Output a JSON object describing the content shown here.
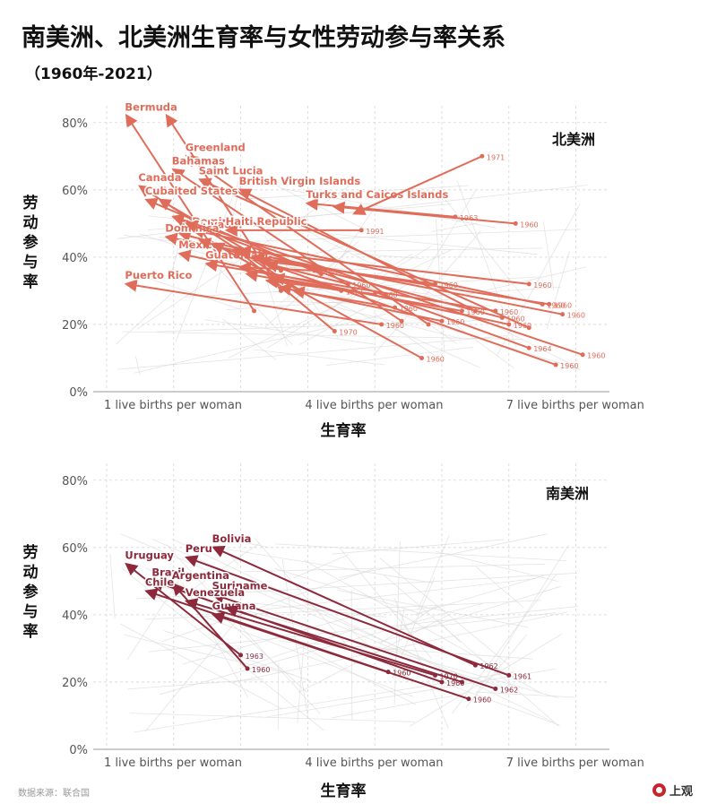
{
  "header": {
    "title": "南美洲、北美洲生育率与女性劳动参与率关系",
    "subtitle": "（1960年-2021）"
  },
  "footer": {
    "source": "数据来源：联合国",
    "brand": "上观"
  },
  "colors": {
    "north_america": "#e06c5a",
    "south_america": "#8c2a3c",
    "background_lines": "#d9d9d9",
    "grid": "#d6d6d6"
  },
  "chart_data": [
    {
      "type": "scatter",
      "title": "北美洲",
      "xlabel": "生育率",
      "ylabel": "劳动参与率",
      "xlim": [
        0.8,
        8.5
      ],
      "ylim": [
        0,
        85
      ],
      "grid": true,
      "x_ticks": [
        {
          "value": 1,
          "label": "1 live births per woman"
        },
        {
          "value": 4,
          "label": "4 live births per woman"
        },
        {
          "value": 7,
          "label": "7 live births per woman"
        }
      ],
      "y_ticks": [
        {
          "value": 0,
          "label": "0%"
        },
        {
          "value": 20,
          "label": "20%"
        },
        {
          "value": 40,
          "label": "40%"
        },
        {
          "value": 60,
          "label": "60%"
        },
        {
          "value": 80,
          "label": "80%"
        }
      ],
      "series": [
        {
          "name": "Bermuda",
          "start_label": "",
          "start": [
            3.2,
            24
          ],
          "end": [
            1.3,
            82
          ]
        },
        {
          "name": "",
          "start_label": "",
          "start": [
            3.6,
            30
          ],
          "end": [
            1.9,
            82
          ]
        },
        {
          "name": "Greenland",
          "start_label": "",
          "start": [
            5.8,
            20
          ],
          "end": [
            2.2,
            70
          ]
        },
        {
          "name": "Bahamas",
          "start_label": "",
          "start": [
            5.4,
            21
          ],
          "end": [
            2.0,
            66
          ]
        },
        {
          "name": "Saint Lucia",
          "start_label": "",
          "start": [
            7.3,
            19
          ],
          "end": [
            2.4,
            63
          ]
        },
        {
          "name": "British Virgin Islands",
          "start_label": "",
          "start": [
            6.5,
            24
          ],
          "end": [
            3.0,
            60
          ]
        },
        {
          "name": "Canada",
          "start_label": "",
          "start": [
            3.9,
            30
          ],
          "end": [
            1.5,
            61
          ]
        },
        {
          "name": "United States",
          "start_label": "",
          "start": [
            3.6,
            36
          ],
          "end": [
            1.8,
            57
          ]
        },
        {
          "name": "Cuba",
          "start_label": "",
          "start": [
            4.2,
            35
          ],
          "end": [
            1.6,
            57
          ]
        },
        {
          "name": "Turks and Caicos Islands",
          "start_label": "1963",
          "start": [
            6.2,
            52
          ],
          "end": [
            4.0,
            56
          ]
        },
        {
          "name": "",
          "start_label": "1960",
          "start": [
            7.1,
            50
          ],
          "end": [
            4.4,
            55
          ]
        },
        {
          "name": "",
          "start_label": "1971",
          "start": [
            6.6,
            70
          ],
          "end": [
            4.7,
            53
          ]
        },
        {
          "name": "Dominican Republic",
          "start_label": "1960",
          "start": [
            7.5,
            26
          ],
          "end": [
            2.3,
            48
          ]
        },
        {
          "name": "El Salvador",
          "start_label": "1960",
          "start": [
            6.9,
            22
          ],
          "end": [
            2.1,
            47
          ]
        },
        {
          "name": "Dominica",
          "start_label": "1960",
          "start": [
            7.8,
            23
          ],
          "end": [
            1.9,
            46
          ]
        },
        {
          "name": "Haiti",
          "start_label": "1991",
          "start": [
            4.8,
            48
          ],
          "end": [
            2.8,
            48
          ]
        },
        {
          "name": "Mexico",
          "start_label": "1960",
          "start": [
            7.0,
            20
          ],
          "end": [
            2.1,
            41
          ]
        },
        {
          "name": "Guatemala",
          "start_label": "1960",
          "start": [
            6.8,
            24
          ],
          "end": [
            2.5,
            38
          ]
        },
        {
          "name": "Puerto Rico",
          "start_label": "1960",
          "start": [
            5.1,
            20
          ],
          "end": [
            1.3,
            32
          ]
        },
        {
          "name": "",
          "start_label": "1960",
          "start": [
            8.1,
            11
          ],
          "end": [
            2.0,
            52
          ]
        },
        {
          "name": "",
          "start_label": "1964",
          "start": [
            7.3,
            13
          ],
          "end": [
            2.2,
            50
          ]
        },
        {
          "name": "",
          "start_label": "1960",
          "start": [
            7.7,
            8
          ],
          "end": [
            2.4,
            45
          ]
        },
        {
          "name": "",
          "start_label": "1960",
          "start": [
            5.7,
            10
          ],
          "end": [
            2.6,
            44
          ]
        },
        {
          "name": "",
          "start_label": "1970",
          "start": [
            4.4,
            18
          ],
          "end": [
            2.9,
            43
          ]
        },
        {
          "name": "",
          "start_label": "1960",
          "start": [
            7.3,
            32
          ],
          "end": [
            3.0,
            42
          ]
        },
        {
          "name": "",
          "start_label": "1960",
          "start": [
            7.6,
            26
          ],
          "end": [
            3.2,
            40
          ]
        },
        {
          "name": "",
          "start_label": "1960",
          "start": [
            5.9,
            32
          ],
          "end": [
            3.3,
            39
          ]
        },
        {
          "name": "",
          "start_label": "1960",
          "start": [
            4.6,
            32
          ],
          "end": [
            3.4,
            38
          ]
        },
        {
          "name": "",
          "start_label": "1960",
          "start": [
            4.1,
            36
          ],
          "end": [
            3.0,
            37
          ]
        },
        {
          "name": "",
          "start_label": "1961",
          "start": [
            4.5,
            30
          ],
          "end": [
            3.1,
            35
          ]
        },
        {
          "name": "",
          "start_label": "1960",
          "start": [
            6.3,
            24
          ],
          "end": [
            3.5,
            34
          ]
        },
        {
          "name": "",
          "start_label": "1960",
          "start": [
            5.0,
            29
          ],
          "end": [
            3.4,
            33
          ]
        },
        {
          "name": "",
          "start_label": "1960",
          "start": [
            6.0,
            21
          ],
          "end": [
            3.6,
            31
          ]
        },
        {
          "name": "",
          "start_label": "1960",
          "start": [
            5.3,
            25
          ],
          "end": [
            3.8,
            30
          ]
        }
      ]
    },
    {
      "type": "scatter",
      "title": "南美洲",
      "xlabel": "生育率",
      "ylabel": "劳动参与率",
      "xlim": [
        0.8,
        8.5
      ],
      "ylim": [
        0,
        85
      ],
      "grid": true,
      "x_ticks": [
        {
          "value": 1,
          "label": "1 live births per woman"
        },
        {
          "value": 4,
          "label": "4 live births per woman"
        },
        {
          "value": 7,
          "label": "7 live births per woman"
        }
      ],
      "y_ticks": [
        {
          "value": 0,
          "label": "0%"
        },
        {
          "value": 20,
          "label": "20%"
        },
        {
          "value": 40,
          "label": "40%"
        },
        {
          "value": 60,
          "label": "60%"
        },
        {
          "value": 80,
          "label": "80%"
        }
      ],
      "series": [
        {
          "name": "Bolivia",
          "start_label": "1962",
          "start": [
            6.5,
            25
          ],
          "end": [
            2.6,
            60
          ]
        },
        {
          "name": "Peru",
          "start_label": "1961",
          "start": [
            7.0,
            22
          ],
          "end": [
            2.2,
            57
          ]
        },
        {
          "name": "Uruguay",
          "start_label": "1963",
          "start": [
            3.0,
            28
          ],
          "end": [
            1.3,
            55
          ]
        },
        {
          "name": "Brazil",
          "start_label": "1960",
          "start": [
            6.0,
            20
          ],
          "end": [
            1.7,
            50
          ]
        },
        {
          "name": "Argentina",
          "start_label": "1960",
          "start": [
            3.1,
            24
          ],
          "end": [
            2.0,
            49
          ]
        },
        {
          "name": "Chile",
          "start_label": "1960",
          "start": [
            5.2,
            23
          ],
          "end": [
            1.6,
            47
          ]
        },
        {
          "name": "Suriname",
          "start_label": "1962",
          "start": [
            6.8,
            18
          ],
          "end": [
            2.6,
            46
          ]
        },
        {
          "name": "Venezuela",
          "start_label": "1970",
          "start": [
            5.9,
            22
          ],
          "end": [
            2.2,
            44
          ]
        },
        {
          "name": "Guyana",
          "start_label": "1960",
          "start": [
            6.4,
            15
          ],
          "end": [
            2.6,
            40
          ]
        },
        {
          "name": "",
          "start_label": "",
          "start": [
            6.3,
            20
          ],
          "end": [
            2.8,
            42
          ]
        }
      ]
    }
  ]
}
